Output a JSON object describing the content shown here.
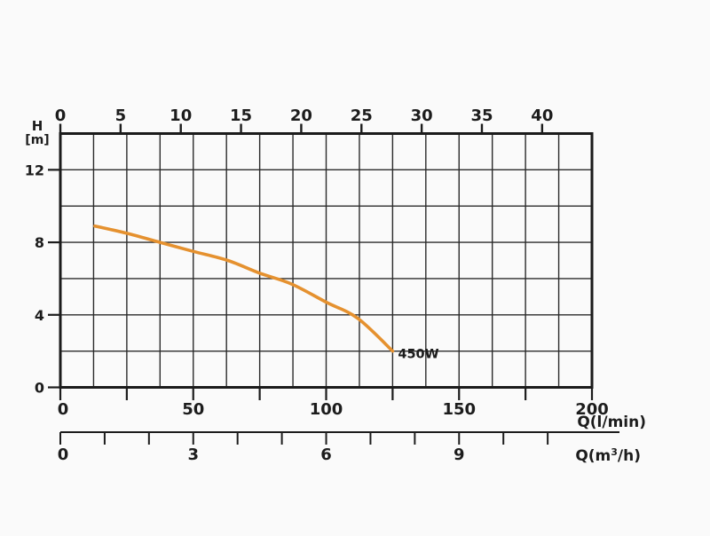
{
  "page": {
    "background": "#fafafa",
    "description": "Pump performance curve chart"
  },
  "chart_data": {
    "type": "line",
    "title": "",
    "grid": {
      "columns": 16,
      "rows": 7,
      "on": true
    },
    "left_axis": {
      "label_line1": "H",
      "label_line2": "[m]",
      "tick_labels": [
        "12",
        "8",
        "4",
        "0"
      ],
      "tick_values": [
        12,
        8,
        4,
        0
      ],
      "range": [
        0,
        14
      ],
      "grid_step": 2
    },
    "top_axis": {
      "tick_labels": [
        "0",
        "5",
        "10",
        "15",
        "20",
        "25",
        "30",
        "35",
        "40"
      ],
      "tick_values": [
        0,
        5,
        10,
        15,
        20,
        25,
        30,
        35,
        40
      ],
      "unit": ""
    },
    "bottom_axis_lmin": {
      "unit_label": "Q(l/min)",
      "tick_labels": [
        "0",
        "50",
        "100",
        "150",
        "200"
      ],
      "tick_values": [
        0,
        50,
        100,
        150,
        200
      ],
      "minor_tick_step": 25,
      "range": [
        0,
        200
      ]
    },
    "bottom_axis_m3h": {
      "unit_prefix": "Q(m",
      "unit_sup": "3",
      "unit_suffix": "/h)",
      "tick_labels": [
        "0",
        "3",
        "6",
        "9"
      ],
      "tick_values": [
        0,
        3,
        6,
        9
      ],
      "minor_tick_step": 1,
      "minor_tick_count": 12,
      "lmin_per_unit": 16.6667
    },
    "series": [
      {
        "name": "450W",
        "color": "#E5912F",
        "x_unit": "l/min",
        "y_unit": "m",
        "points": [
          [
            13,
            8.9
          ],
          [
            25,
            8.5
          ],
          [
            37.5,
            8.0
          ],
          [
            50,
            7.5
          ],
          [
            63,
            7.0
          ],
          [
            75,
            6.3
          ],
          [
            87,
            5.7
          ],
          [
            100,
            4.7
          ],
          [
            112,
            3.8
          ],
          [
            125,
            2.0
          ]
        ]
      }
    ],
    "colors": {
      "border": "#1b1b1b",
      "grid": "#2b2b2b",
      "axis": "#1c1c1c",
      "text": "#1c1c1c",
      "curve": "#E5912F"
    }
  }
}
